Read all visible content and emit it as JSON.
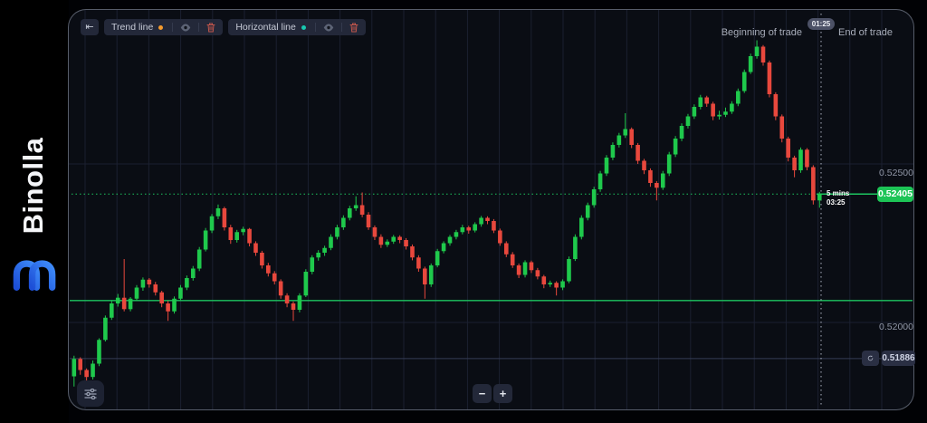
{
  "brand": {
    "name": "Binolla",
    "logo_color_dark": "#1d4fd7",
    "logo_color_light": "#3f8dfb"
  },
  "toolbar": {
    "collapse_icon": "⇤",
    "tools": [
      {
        "label": "Trend line",
        "color": "#f59b2d"
      },
      {
        "label": "Horizontal line",
        "color": "#18c9b0"
      }
    ]
  },
  "trade_markers": {
    "beginning_label": "Beginning of trade",
    "time_badge": "01:25",
    "end_label": "End of trade"
  },
  "current_price": {
    "value": "0.52405",
    "timeframe": "5 mins",
    "time": "03:25"
  },
  "lower_marker": {
    "value": "0.51886"
  },
  "zoom_controls": {
    "minus": "−",
    "plus": "+"
  },
  "chart_data": {
    "type": "candlestick",
    "ylabel": "price",
    "y_axis": {
      "gridlines": [
        {
          "price": 0.525,
          "label": "0.52500"
        },
        {
          "price": 0.52,
          "label": "0.52000"
        }
      ]
    },
    "levels": [
      {
        "price": 0.52069,
        "style": "solid",
        "color": "#1dc45f",
        "role": "drawn-horizontal-line"
      },
      {
        "price": 0.52405,
        "style": "dotted",
        "color": "#1dc45f",
        "role": "current-price"
      },
      {
        "price": 0.51886,
        "style": "solid",
        "color": "#353c55",
        "role": "lower-marker-line"
      }
    ],
    "colors": {
      "bull": "#1fc94c",
      "bear": "#e8483d"
    },
    "legend_position": "none",
    "candles_format": [
      "open",
      "high",
      "low",
      "close"
    ],
    "candles_unit": "price x 100000",
    "candles": [
      [
        51830,
        51895,
        51798,
        51885
      ],
      [
        51885,
        51890,
        51835,
        51850
      ],
      [
        51850,
        51855,
        51806,
        51828
      ],
      [
        51828,
        51880,
        51820,
        51870
      ],
      [
        51870,
        51950,
        51862,
        51945
      ],
      [
        51945,
        52022,
        51940,
        52015
      ],
      [
        52015,
        52068,
        52008,
        52060
      ],
      [
        52060,
        52090,
        52050,
        52078
      ],
      [
        52078,
        52200,
        52035,
        52042
      ],
      [
        52042,
        52080,
        52035,
        52075
      ],
      [
        52075,
        52118,
        52068,
        52110
      ],
      [
        52110,
        52142,
        52100,
        52135
      ],
      [
        52135,
        52140,
        52110,
        52120
      ],
      [
        52120,
        52128,
        52085,
        52095
      ],
      [
        52095,
        52100,
        52048,
        52060
      ],
      [
        52060,
        52068,
        52005,
        52035
      ],
      [
        52035,
        52082,
        52028,
        52075
      ],
      [
        52075,
        52118,
        52070,
        52110
      ],
      [
        52110,
        52148,
        52102,
        52140
      ],
      [
        52140,
        52178,
        52132,
        52170
      ],
      [
        52170,
        52238,
        52162,
        52230
      ],
      [
        52230,
        52298,
        52224,
        52290
      ],
      [
        52290,
        52342,
        52282,
        52335
      ],
      [
        52335,
        52372,
        52326,
        52360
      ],
      [
        52360,
        52365,
        52290,
        52300
      ],
      [
        52300,
        52308,
        52248,
        52260
      ],
      [
        52260,
        52292,
        52252,
        52285
      ],
      [
        52285,
        52302,
        52275,
        52295
      ],
      [
        52295,
        52298,
        52240,
        52250
      ],
      [
        52250,
        52256,
        52210,
        52220
      ],
      [
        52220,
        52226,
        52170,
        52180
      ],
      [
        52180,
        52188,
        52145,
        52155
      ],
      [
        52155,
        52162,
        52120,
        52130
      ],
      [
        52130,
        52136,
        52075,
        52085
      ],
      [
        52085,
        52092,
        52048,
        52060
      ],
      [
        52060,
        52066,
        52005,
        52040
      ],
      [
        52040,
        52092,
        52032,
        52085
      ],
      [
        52085,
        52168,
        52080,
        52160
      ],
      [
        52160,
        52212,
        52152,
        52205
      ],
      [
        52205,
        52228,
        52195,
        52220
      ],
      [
        52220,
        52242,
        52210,
        52235
      ],
      [
        52235,
        52278,
        52228,
        52270
      ],
      [
        52270,
        52308,
        52262,
        52300
      ],
      [
        52300,
        52338,
        52292,
        52330
      ],
      [
        52330,
        52368,
        52322,
        52360
      ],
      [
        52360,
        52398,
        52352,
        52370
      ],
      [
        52370,
        52410,
        52332,
        52340
      ],
      [
        52340,
        52348,
        52292,
        52300
      ],
      [
        52300,
        52306,
        52260,
        52270
      ],
      [
        52270,
        52278,
        52235,
        52245
      ],
      [
        52245,
        52262,
        52238,
        52255
      ],
      [
        52255,
        52276,
        52248,
        52270
      ],
      [
        52270,
        52275,
        52250,
        52260
      ],
      [
        52260,
        52266,
        52230,
        52240
      ],
      [
        52240,
        52246,
        52196,
        52205
      ],
      [
        52205,
        52212,
        52160,
        52170
      ],
      [
        52170,
        52176,
        52075,
        52120
      ],
      [
        52120,
        52186,
        52112,
        52180
      ],
      [
        52180,
        52232,
        52174,
        52225
      ],
      [
        52225,
        52256,
        52218,
        52250
      ],
      [
        52250,
        52276,
        52242,
        52270
      ],
      [
        52270,
        52292,
        52262,
        52285
      ],
      [
        52285,
        52308,
        52278,
        52300
      ],
      [
        52300,
        52305,
        52280,
        52290
      ],
      [
        52290,
        52316,
        52284,
        52310
      ],
      [
        52310,
        52336,
        52302,
        52330
      ],
      [
        52330,
        52335,
        52310,
        52320
      ],
      [
        52320,
        52326,
        52282,
        52290
      ],
      [
        52290,
        52296,
        52242,
        52250
      ],
      [
        52250,
        52256,
        52206,
        52215
      ],
      [
        52215,
        52222,
        52172,
        52180
      ],
      [
        52180,
        52186,
        52140,
        52150
      ],
      [
        52150,
        52196,
        52142,
        52190
      ],
      [
        52190,
        52195,
        52156,
        52165
      ],
      [
        52165,
        52172,
        52136,
        52145
      ],
      [
        52145,
        52150,
        52108,
        52120
      ],
      [
        52120,
        52132,
        52112,
        52125
      ],
      [
        52125,
        52130,
        52085,
        52110
      ],
      [
        52110,
        52136,
        52102,
        52130
      ],
      [
        52130,
        52208,
        52124,
        52200
      ],
      [
        52200,
        52278,
        52194,
        52270
      ],
      [
        52270,
        52338,
        52262,
        52330
      ],
      [
        52330,
        52378,
        52322,
        52370
      ],
      [
        52370,
        52428,
        52362,
        52420
      ],
      [
        52420,
        52478,
        52412,
        52470
      ],
      [
        52470,
        52528,
        52462,
        52520
      ],
      [
        52520,
        52568,
        52512,
        52560
      ],
      [
        52560,
        52598,
        52552,
        52590
      ],
      [
        52590,
        52660,
        52582,
        52610
      ],
      [
        52610,
        52615,
        52550,
        52560
      ],
      [
        52560,
        52566,
        52500,
        52510
      ],
      [
        52510,
        52516,
        52468,
        52480
      ],
      [
        52480,
        52486,
        52428,
        52440
      ],
      [
        52440,
        52446,
        52385,
        52425
      ],
      [
        52425,
        52478,
        52418,
        52470
      ],
      [
        52470,
        52538,
        52462,
        52530
      ],
      [
        52530,
        52588,
        52522,
        52580
      ],
      [
        52580,
        52628,
        52572,
        52620
      ],
      [
        52620,
        52658,
        52612,
        52650
      ],
      [
        52650,
        52688,
        52642,
        52680
      ],
      [
        52680,
        52718,
        52672,
        52710
      ],
      [
        52710,
        52715,
        52680,
        52690
      ],
      [
        52690,
        52696,
        52638,
        52650
      ],
      [
        52650,
        52668,
        52640,
        52655
      ],
      [
        52655,
        52678,
        52648,
        52665
      ],
      [
        52665,
        52698,
        52658,
        52690
      ],
      [
        52690,
        52738,
        52682,
        52730
      ],
      [
        52730,
        52798,
        52724,
        52790
      ],
      [
        52790,
        52848,
        52784,
        52840
      ],
      [
        52840,
        52890,
        52832,
        52870
      ],
      [
        52870,
        52875,
        52810,
        52820
      ],
      [
        52820,
        52826,
        52710,
        52720
      ],
      [
        52720,
        52726,
        52638,
        52650
      ],
      [
        52650,
        52656,
        52568,
        52580
      ],
      [
        52580,
        52586,
        52508,
        52520
      ],
      [
        52520,
        52526,
        52458,
        52480
      ],
      [
        52480,
        52552,
        52472,
        52545
      ],
      [
        52545,
        52550,
        52480,
        52490
      ],
      [
        52490,
        52496,
        52372,
        52385
      ],
      [
        52385,
        52412,
        52362,
        52405
      ]
    ]
  }
}
